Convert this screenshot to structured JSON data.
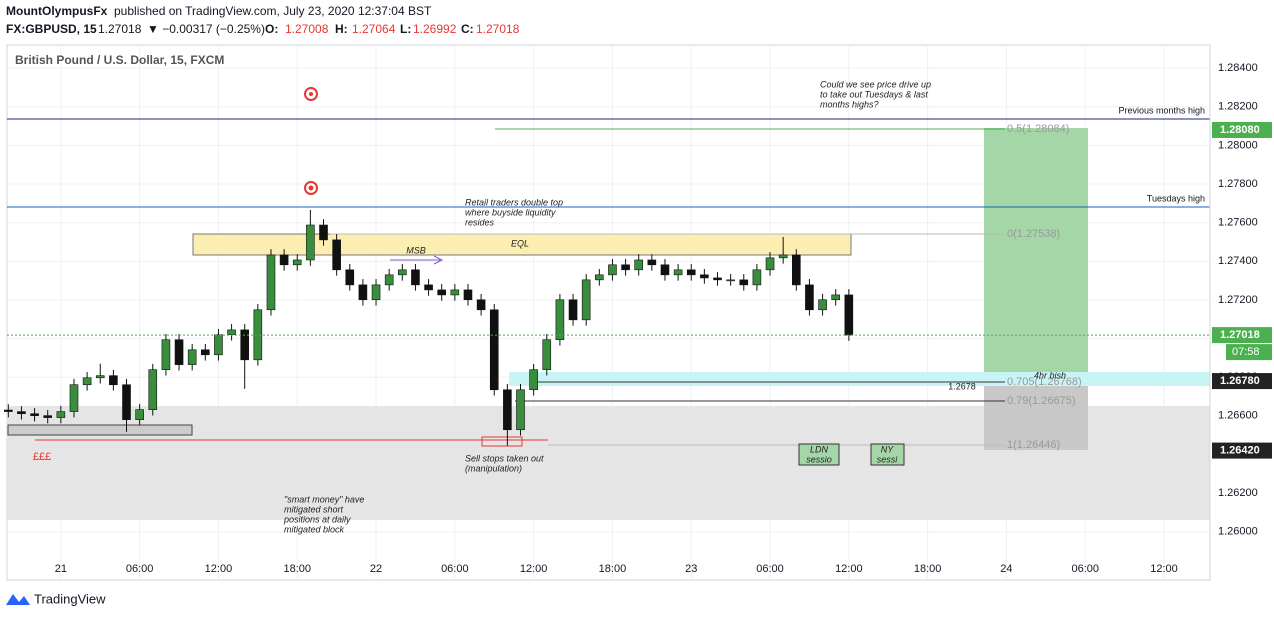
{
  "chart_data": {
    "type": "candlestick",
    "header": {
      "author": "MountOlympusFx",
      "published": "published on TradingView.com, July 23, 2020 12:37:04 BST",
      "symbol": "FX:GBPUSD, 15",
      "last": "1.27018",
      "change": "▼ −0.00317 (−0.25%)",
      "o": "O:",
      "ov": "1.27008",
      "h": "H:",
      "hv": "1.27064",
      "l": "L:",
      "lv": "1.26992",
      "c": "C:",
      "cv": "1.27018"
    },
    "title": "British Pound / U.S. Dollar, 15, FXCM",
    "footer": "TradingView",
    "up_color": "#388e3c",
    "down_color": "#111111",
    "xlim": [
      -4.1,
      87.5
    ],
    "xticks": [
      {
        "value": 0,
        "label": "21"
      },
      {
        "value": 6,
        "label": "06:00"
      },
      {
        "value": 12,
        "label": "12:00"
      },
      {
        "value": 18,
        "label": "18:00"
      },
      {
        "value": 24,
        "label": "22"
      },
      {
        "value": 30,
        "label": "06:00"
      },
      {
        "value": 36,
        "label": "12:00"
      },
      {
        "value": 42,
        "label": "18:00"
      },
      {
        "value": 48,
        "label": "23"
      },
      {
        "value": 54,
        "label": "06:00"
      },
      {
        "value": 60,
        "label": "12:00"
      },
      {
        "value": 66,
        "label": "18:00"
      },
      {
        "value": 72,
        "label": "24"
      },
      {
        "value": 78,
        "label": "06:00"
      },
      {
        "value": 84,
        "label": "12:00"
      }
    ],
    "ylim": [
      1.2575,
      1.2852
    ],
    "yticks": [
      {
        "value": 1.26,
        "label": "1.26000"
      },
      {
        "value": 1.262,
        "label": "1.26200"
      },
      {
        "value": 1.264,
        "label": "1.26400"
      },
      {
        "value": 1.266,
        "label": "1.26600"
      },
      {
        "value": 1.268,
        "label": "1.26800"
      },
      {
        "value": 1.27,
        "label": "1.27000"
      },
      {
        "value": 1.272,
        "label": "1.27200"
      },
      {
        "value": 1.274,
        "label": "1.27400"
      },
      {
        "value": 1.276,
        "label": "1.27600"
      },
      {
        "value": 1.278,
        "label": "1.27800"
      },
      {
        "value": 1.28,
        "label": "1.28000"
      },
      {
        "value": 1.282,
        "label": "1.28200"
      },
      {
        "value": 1.284,
        "label": "1.28400"
      }
    ],
    "grid": true,
    "x": [
      -4,
      -3,
      -2,
      -1,
      0,
      1,
      2,
      3,
      4,
      5,
      6,
      7,
      8,
      9,
      10,
      11,
      12,
      13,
      14,
      15,
      16,
      17,
      18,
      19,
      20,
      21,
      22,
      23,
      24,
      25,
      26,
      27,
      28,
      29,
      30,
      31,
      32,
      33,
      34,
      35,
      36,
      37,
      38,
      39,
      40,
      41,
      42,
      43,
      44,
      45,
      46,
      47,
      48,
      49,
      50,
      51,
      52,
      53,
      54,
      55,
      56,
      57,
      58,
      59,
      60
    ],
    "ohlc": [
      [
        1.2663,
        1.2666,
        1.26592,
        1.26622
      ],
      [
        1.26622,
        1.2665,
        1.26581,
        1.26611
      ],
      [
        1.26611,
        1.2664,
        1.26571,
        1.26601
      ],
      [
        1.26601,
        1.2663,
        1.26561,
        1.26591
      ],
      [
        1.26591,
        1.26652,
        1.26561,
        1.26622
      ],
      [
        1.26622,
        1.26791,
        1.26592,
        1.26761
      ],
      [
        1.26761,
        1.26827,
        1.26731,
        1.26797
      ],
      [
        1.26797,
        1.2687,
        1.26767,
        1.26808
      ],
      [
        1.26808,
        1.26838,
        1.26731,
        1.26761
      ],
      [
        1.26761,
        1.26791,
        1.26517,
        1.2658
      ],
      [
        1.2658,
        1.26662,
        1.2655,
        1.26632
      ],
      [
        1.26632,
        1.26869,
        1.26602,
        1.26839
      ],
      [
        1.26839,
        1.27024,
        1.26809,
        1.26994
      ],
      [
        1.26994,
        1.27024,
        1.26835,
        1.26865
      ],
      [
        1.26865,
        1.26972,
        1.26835,
        1.26942
      ],
      [
        1.26942,
        1.26972,
        1.26886,
        1.26916
      ],
      [
        1.26916,
        1.2705,
        1.26886,
        1.2702
      ],
      [
        1.2702,
        1.27075,
        1.2699,
        1.27045
      ],
      [
        1.27045,
        1.27075,
        1.2674,
        1.2689
      ],
      [
        1.2689,
        1.27179,
        1.2686,
        1.27149
      ],
      [
        1.27149,
        1.27463,
        1.27119,
        1.27433
      ],
      [
        1.27433,
        1.27463,
        1.27352,
        1.27382
      ],
      [
        1.27382,
        1.27437,
        1.27352,
        1.27407
      ],
      [
        1.27407,
        1.27666,
        1.27377,
        1.27588
      ],
      [
        1.27588,
        1.27618,
        1.27481,
        1.27511
      ],
      [
        1.27511,
        1.27541,
        1.27326,
        1.27356
      ],
      [
        1.27356,
        1.27386,
        1.27248,
        1.27278
      ],
      [
        1.27278,
        1.27308,
        1.27171,
        1.27201
      ],
      [
        1.27201,
        1.27308,
        1.27171,
        1.27278
      ],
      [
        1.27278,
        1.2736,
        1.27248,
        1.2733
      ],
      [
        1.2733,
        1.27386,
        1.273,
        1.27356
      ],
      [
        1.27356,
        1.27386,
        1.27248,
        1.27278
      ],
      [
        1.27278,
        1.27308,
        1.27222,
        1.27252
      ],
      [
        1.27252,
        1.27282,
        1.27196,
        1.27226
      ],
      [
        1.27226,
        1.27282,
        1.27196,
        1.27252
      ],
      [
        1.27252,
        1.27282,
        1.27171,
        1.27201
      ],
      [
        1.27201,
        1.27231,
        1.27119,
        1.27149
      ],
      [
        1.27149,
        1.27179,
        1.26705,
        1.26735
      ],
      [
        1.26735,
        1.26765,
        1.26446,
        1.26528
      ],
      [
        1.26528,
        1.26765,
        1.26498,
        1.26735
      ],
      [
        1.26735,
        1.26869,
        1.26705,
        1.26839
      ],
      [
        1.26839,
        1.27024,
        1.26809,
        1.26994
      ],
      [
        1.26994,
        1.27231,
        1.26964,
        1.27201
      ],
      [
        1.27201,
        1.27231,
        1.27067,
        1.27097
      ],
      [
        1.27097,
        1.27334,
        1.27067,
        1.27304
      ],
      [
        1.27304,
        1.2736,
        1.27274,
        1.2733
      ],
      [
        1.2733,
        1.27412,
        1.273,
        1.27382
      ],
      [
        1.27382,
        1.27412,
        1.27326,
        1.27356
      ],
      [
        1.27356,
        1.27437,
        1.27326,
        1.27407
      ],
      [
        1.27407,
        1.27437,
        1.27352,
        1.27382
      ],
      [
        1.27382,
        1.27412,
        1.273,
        1.2733
      ],
      [
        1.2733,
        1.27386,
        1.273,
        1.27356
      ],
      [
        1.27356,
        1.27386,
        1.273,
        1.2733
      ],
      [
        1.2733,
        1.2736,
        1.27284,
        1.27314
      ],
      [
        1.27314,
        1.27344,
        1.27274,
        1.27304
      ],
      [
        1.27304,
        1.27334,
        1.27274,
        1.27304
      ],
      [
        1.27304,
        1.27334,
        1.27248,
        1.27278
      ],
      [
        1.27278,
        1.27386,
        1.27248,
        1.27356
      ],
      [
        1.27356,
        1.27448,
        1.27326,
        1.27418
      ],
      [
        1.27418,
        1.27526,
        1.27388,
        1.27433
      ],
      [
        1.27433,
        1.27463,
        1.27248,
        1.27278
      ],
      [
        1.27278,
        1.27308,
        1.27119,
        1.27149
      ],
      [
        1.27149,
        1.27231,
        1.27119,
        1.27201
      ],
      [
        1.27201,
        1.27256,
        1.27171,
        1.27226
      ],
      [
        1.27226,
        1.27256,
        1.26988,
        1.27018
      ]
    ],
    "levels": [
      {
        "label": "Previous months high",
        "value": 1.28137,
        "color": "#1a237e"
      },
      {
        "label": "Tuesdays high",
        "value": 1.27681,
        "color": "#1565c0"
      }
    ],
    "price_tags": [
      {
        "value": 1.2808,
        "label": "1.28080",
        "color": "#4caf50"
      },
      {
        "value": 1.27018,
        "label": "1.27018",
        "color": "#4caf50"
      },
      {
        "value": 1.2678,
        "label": "1.26780",
        "color": "#222222"
      },
      {
        "value": 1.2642,
        "label": "1.26420",
        "color": "#222222"
      }
    ],
    "countdown": "07:58",
    "fib_labels": [
      "0.5(1.28084)",
      "0(1.27538)",
      "0.705(1.26768)",
      "0.79(1.26675)",
      "1(1.26446)"
    ],
    "annotations": {
      "question": [
        "Could we see price drive up",
        "to take out Tuesdays & last",
        "months highs?"
      ],
      "retail": [
        "Retail traders double top",
        "where buyside liquidity",
        "resides"
      ],
      "eql": "EQL",
      "msb": "MSB",
      "pounds": "£££",
      "sellstops": [
        "Sell stops taken out",
        "(manipulation)"
      ],
      "smart": [
        "\"smart money\" have",
        "mitigated short",
        "positions at daily",
        "mitigated block"
      ],
      "ldn": [
        "LDN",
        "sessio"
      ],
      "ny": [
        "NY",
        "sessi"
      ],
      "level_1": "1.2678",
      "bish": "4hr bish"
    }
  }
}
